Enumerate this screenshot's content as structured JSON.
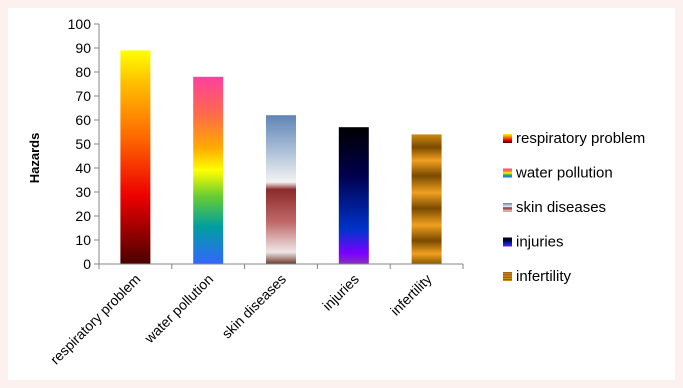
{
  "chart_data": {
    "type": "bar",
    "title": "",
    "xlabel": "",
    "ylabel": "Hazards",
    "ylim": [
      0,
      100
    ],
    "yticks": [
      0,
      10,
      20,
      30,
      40,
      50,
      60,
      70,
      80,
      90,
      100
    ],
    "grid": false,
    "legend_position": "right",
    "categories": [
      "respiratory problem",
      "water pollution",
      "skin diseases",
      "injuries",
      "infertility"
    ],
    "values": [
      89,
      78,
      62,
      57,
      54
    ],
    "legend": [
      "respiratory problem",
      "water pollution",
      "skin diseases",
      "injuries",
      "infertility"
    ],
    "fills": [
      "fire",
      "rainbow",
      "parchment",
      "midnight",
      "brass"
    ]
  }
}
